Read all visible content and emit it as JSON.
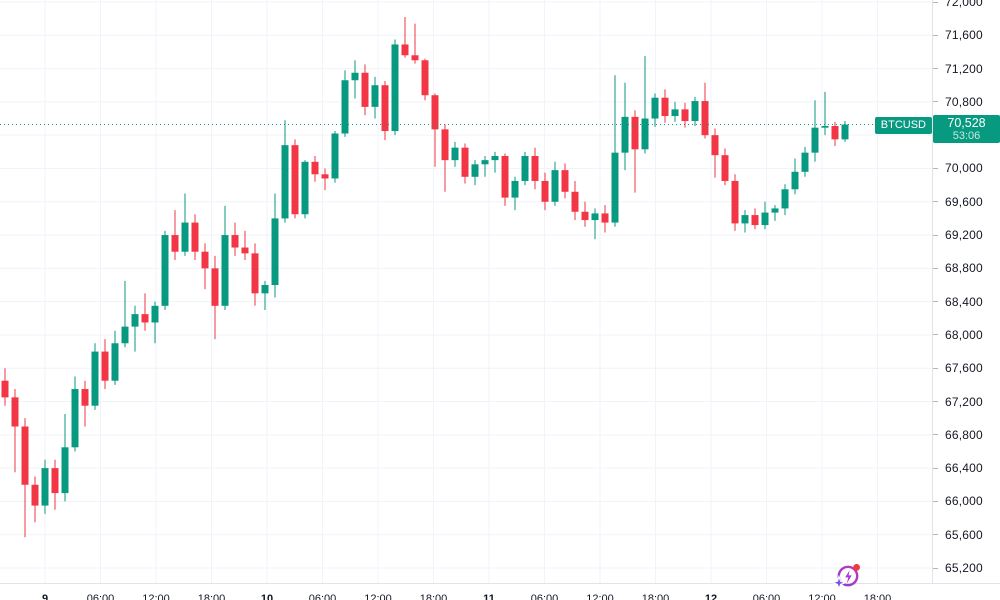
{
  "symbol_badge": {
    "symbol": "BTCUSD",
    "price": "70,528",
    "countdown": "53:06"
  },
  "colors": {
    "up": "#089981",
    "down": "#f23645",
    "grid": "#f0f3fa",
    "axis_text": "#131722",
    "separator": "#e0e3eb",
    "tick": "#b2b5be",
    "badge_bg": "#089981",
    "badge_text": "#ffffff",
    "price_line": "#089981",
    "background": "#ffffff"
  },
  "price_axis_labels": [
    "72,000",
    "71,600",
    "71,200",
    "70,800",
    "70,400",
    "70,000",
    "69,600",
    "69,200",
    "68,800",
    "68,400",
    "68,000",
    "67,600",
    "67,200",
    "66,800",
    "66,400",
    "66,000",
    "65,600",
    "65,200"
  ],
  "time_axis_labels": [
    {
      "text": "9",
      "day": true
    },
    {
      "text": "06:00",
      "day": false
    },
    {
      "text": "12:00",
      "day": false
    },
    {
      "text": "18:00",
      "day": false
    },
    {
      "text": "10",
      "day": true
    },
    {
      "text": "06:00",
      "day": false
    },
    {
      "text": "12:00",
      "day": false
    },
    {
      "text": "18:00",
      "day": false
    },
    {
      "text": "11",
      "day": true
    },
    {
      "text": "06:00",
      "day": false
    },
    {
      "text": "12:00",
      "day": false
    },
    {
      "text": "18:00",
      "day": false
    },
    {
      "text": "12",
      "day": true
    },
    {
      "text": "06:00",
      "day": false
    },
    {
      "text": "12:00",
      "day": false
    },
    {
      "text": "18:00",
      "day": false
    }
  ],
  "spark_icon": {
    "circle": "#b13bd4",
    "bolt": "#a937d0",
    "sparkle_from": "#4f46e5",
    "sparkle_to": "#a855f7",
    "dot": "#f23645"
  },
  "chart_data": {
    "type": "candlestick",
    "symbol": "BTCUSD",
    "current_price": 70528,
    "countdown": "53:06",
    "y_axis": {
      "min": 65200,
      "max": 72000,
      "step": 400
    },
    "grid": true,
    "legend_position": "none",
    "candles_ohlc": [
      [
        67450,
        67600,
        67150,
        67250
      ],
      [
        67250,
        67350,
        66350,
        66900
      ],
      [
        66900,
        67000,
        65570,
        66200
      ],
      [
        66200,
        66300,
        65750,
        65950
      ],
      [
        65950,
        66500,
        65850,
        66400
      ],
      [
        66400,
        66500,
        65900,
        66100
      ],
      [
        66100,
        67050,
        66000,
        66650
      ],
      [
        66650,
        67500,
        66600,
        67350
      ],
      [
        67350,
        67450,
        66900,
        67150
      ],
      [
        67150,
        67900,
        67100,
        67800
      ],
      [
        67800,
        67950,
        67350,
        67450
      ],
      [
        67450,
        68050,
        67400,
        67900
      ],
      [
        67900,
        68650,
        67850,
        68100
      ],
      [
        68100,
        68350,
        67800,
        68250
      ],
      [
        68250,
        68500,
        68050,
        68150
      ],
      [
        68150,
        68400,
        67900,
        68350
      ],
      [
        68350,
        69250,
        68300,
        69200
      ],
      [
        69200,
        69500,
        68900,
        69000
      ],
      [
        69000,
        69700,
        68950,
        69350
      ],
      [
        69350,
        69450,
        68900,
        69000
      ],
      [
        69000,
        69100,
        68550,
        68800
      ],
      [
        68800,
        68950,
        67950,
        68350
      ],
      [
        68350,
        69550,
        68300,
        69200
      ],
      [
        69200,
        69350,
        68950,
        69050
      ],
      [
        69050,
        69250,
        68900,
        68980
      ],
      [
        68980,
        69100,
        68350,
        68500
      ],
      [
        68500,
        68650,
        68300,
        68600
      ],
      [
        68600,
        69700,
        68450,
        69400
      ],
      [
        69400,
        70580,
        69350,
        70280
      ],
      [
        70280,
        70350,
        69400,
        69450
      ],
      [
        69450,
        70100,
        69400,
        70080
      ],
      [
        70080,
        70150,
        69840,
        69930
      ],
      [
        69930,
        70000,
        69740,
        69880
      ],
      [
        69880,
        70450,
        69830,
        70420
      ],
      [
        70420,
        71180,
        70380,
        71060
      ],
      [
        71060,
        71300,
        70840,
        71150
      ],
      [
        71150,
        71250,
        70640,
        70740
      ],
      [
        70740,
        71100,
        70600,
        71000
      ],
      [
        71000,
        71050,
        70340,
        70450
      ],
      [
        70450,
        71550,
        70400,
        71490
      ],
      [
        71490,
        71820,
        71330,
        71360
      ],
      [
        71360,
        71740,
        71260,
        71300
      ],
      [
        71300,
        71320,
        70820,
        70880
      ],
      [
        70880,
        70900,
        70020,
        70470
      ],
      [
        70470,
        70530,
        69720,
        70100
      ],
      [
        70100,
        70320,
        70020,
        70250
      ],
      [
        70250,
        70300,
        69820,
        69900
      ],
      [
        69900,
        70100,
        69800,
        70050
      ],
      [
        70050,
        70150,
        69900,
        70100
      ],
      [
        70100,
        70200,
        69950,
        70150
      ],
      [
        70150,
        70180,
        69550,
        69650
      ],
      [
        69650,
        69900,
        69500,
        69850
      ],
      [
        69850,
        70200,
        69800,
        70150
      ],
      [
        70150,
        70250,
        69750,
        69850
      ],
      [
        69850,
        69950,
        69500,
        69600
      ],
      [
        69600,
        70080,
        69550,
        69980
      ],
      [
        69980,
        70060,
        69640,
        69720
      ],
      [
        69720,
        69850,
        69380,
        69480
      ],
      [
        69480,
        69600,
        69300,
        69380
      ],
      [
        69380,
        69520,
        69150,
        69460
      ],
      [
        69460,
        69560,
        69230,
        69350
      ],
      [
        69350,
        71120,
        69300,
        70190
      ],
      [
        70190,
        71030,
        69980,
        70620
      ],
      [
        70620,
        70700,
        69710,
        70230
      ],
      [
        70230,
        71350,
        70180,
        70600
      ],
      [
        70600,
        70900,
        70500,
        70850
      ],
      [
        70850,
        70950,
        70550,
        70630
      ],
      [
        70630,
        70800,
        70560,
        70710
      ],
      [
        70710,
        70790,
        70490,
        70570
      ],
      [
        70570,
        70860,
        70510,
        70810
      ],
      [
        70810,
        71030,
        70360,
        70400
      ],
      [
        70400,
        70480,
        69890,
        70160
      ],
      [
        70160,
        70240,
        69800,
        69850
      ],
      [
        69850,
        69930,
        69250,
        69340
      ],
      [
        69340,
        69500,
        69230,
        69440
      ],
      [
        69440,
        69520,
        69270,
        69320
      ],
      [
        69320,
        69600,
        69270,
        69470
      ],
      [
        69470,
        69560,
        69370,
        69520
      ],
      [
        69520,
        69810,
        69440,
        69750
      ],
      [
        69750,
        70120,
        69690,
        69960
      ],
      [
        69960,
        70260,
        69900,
        70190
      ],
      [
        70190,
        70820,
        70080,
        70490
      ],
      [
        70490,
        70920,
        70400,
        70510
      ],
      [
        70510,
        70560,
        70270,
        70350
      ],
      [
        70350,
        70570,
        70320,
        70528
      ]
    ]
  }
}
